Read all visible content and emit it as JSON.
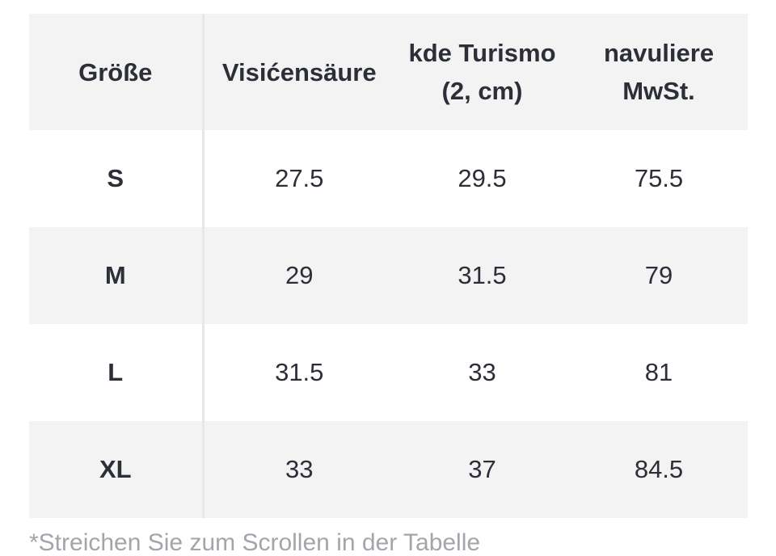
{
  "table": {
    "headers": [
      "Größe",
      "Visićensäure",
      "kde Turismo (2, cm)",
      "navuliere MwSt."
    ],
    "rows": [
      [
        "S",
        "27.5",
        "29.5",
        "75.5"
      ],
      [
        "M",
        "29",
        "31.5",
        "79"
      ],
      [
        "L",
        "31.5",
        "33",
        "81"
      ],
      [
        "XL",
        "33",
        "37",
        "84.5"
      ]
    ]
  },
  "footnote": "*Streichen Sie zum Scrollen in der Tabelle",
  "colors": {
    "header_background": "#f3f3f3",
    "stripe_background": "#f3f3f3",
    "text": "#2d2f38",
    "footnote_text": "#a3a5ab",
    "divider": "#e7e7e7"
  }
}
